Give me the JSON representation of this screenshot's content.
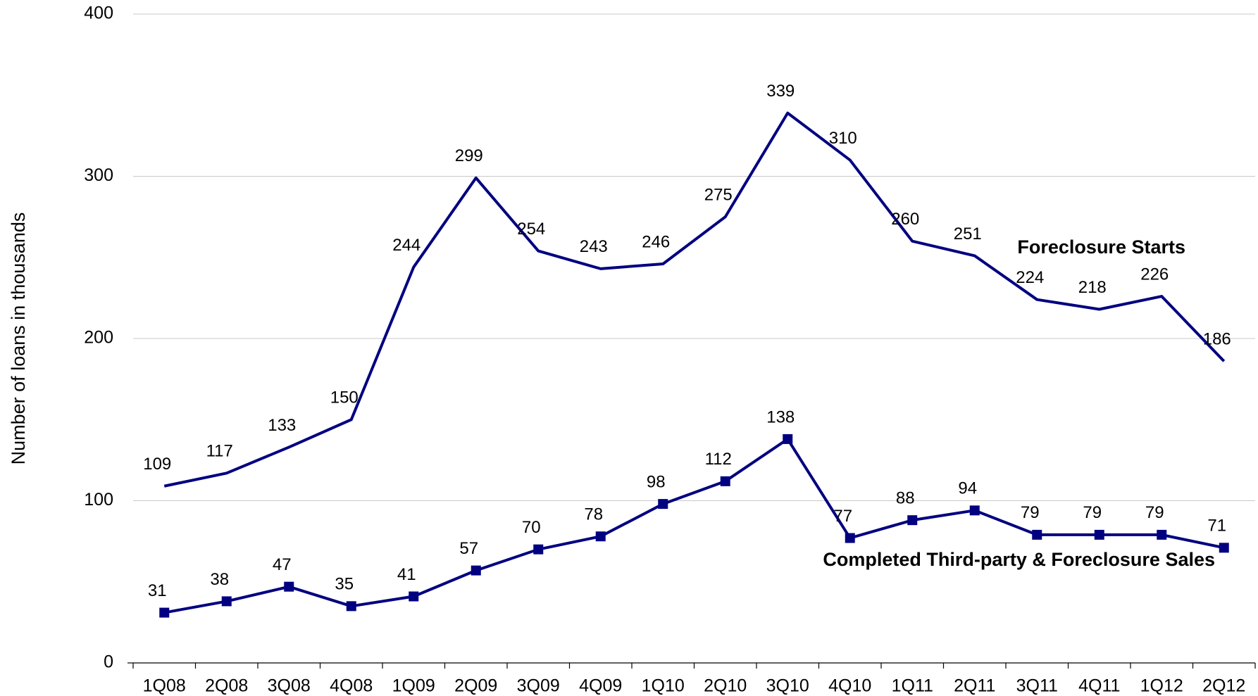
{
  "chart_data": {
    "type": "line",
    "y_label": "Number of loans in thousands",
    "categories": [
      "1Q08",
      "2Q08",
      "3Q08",
      "4Q08",
      "1Q09",
      "2Q09",
      "3Q09",
      "4Q09",
      "1Q10",
      "2Q10",
      "3Q10",
      "4Q10",
      "1Q11",
      "2Q11",
      "3Q11",
      "4Q11",
      "1Q12",
      "2Q12"
    ],
    "series": [
      {
        "name": "Foreclosure Starts",
        "color": "#000080",
        "marker": "none",
        "values": [
          109,
          117,
          133,
          150,
          244,
          299,
          254,
          243,
          246,
          275,
          339,
          310,
          260,
          251,
          224,
          218,
          226,
          186
        ]
      },
      {
        "name": "Completed Third-party & Foreclosure Sales",
        "color": "#000080",
        "marker": "square",
        "values": [
          31,
          38,
          47,
          35,
          41,
          57,
          70,
          78,
          98,
          112,
          138,
          77,
          88,
          94,
          79,
          79,
          79,
          71
        ]
      }
    ],
    "ylim": [
      0,
      400
    ],
    "yticks": [
      0,
      100,
      200,
      300,
      400
    ],
    "grid": true
  }
}
